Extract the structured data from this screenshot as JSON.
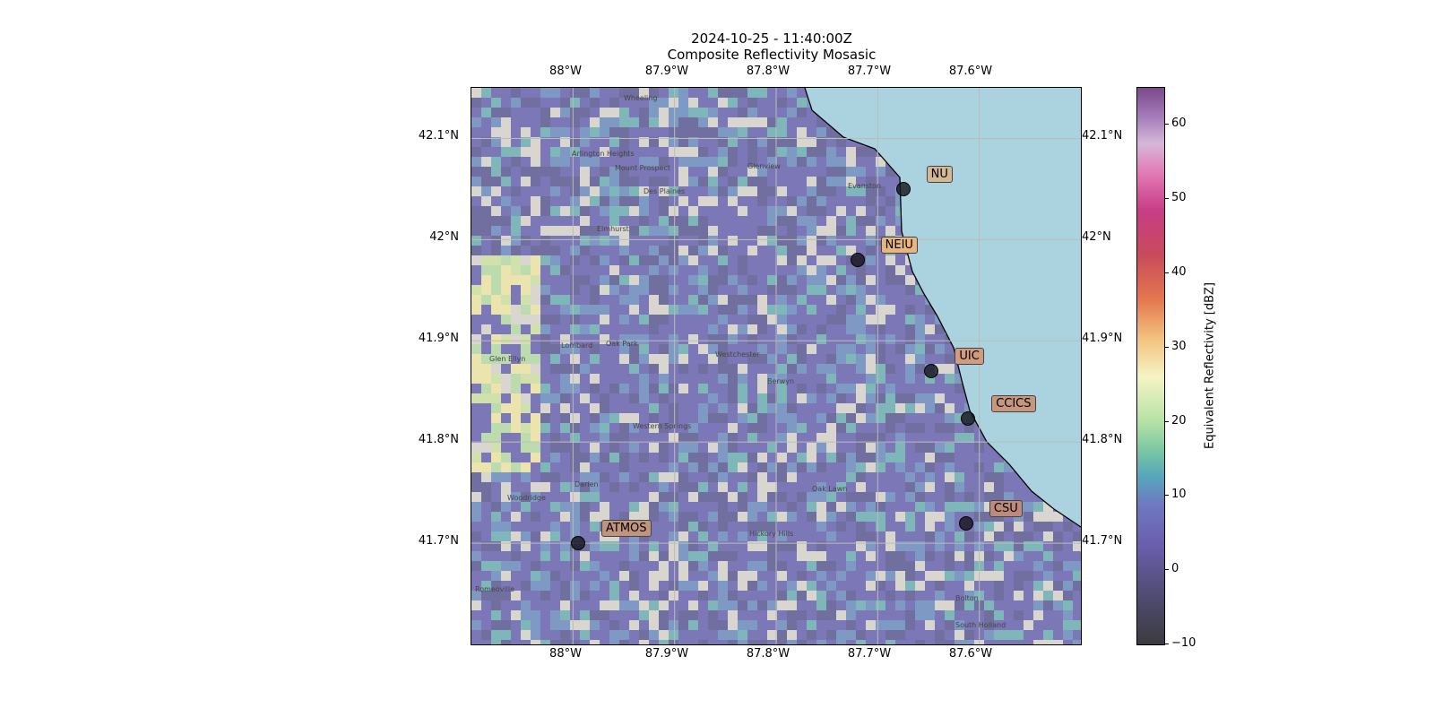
{
  "title": {
    "line1": "2024-10-25 - 11:40:00Z",
    "line2": "Composite Reflectivity Mosasic"
  },
  "axes": {
    "lon_ticks": [
      "88°W",
      "87.9°W",
      "87.8°W",
      "87.7°W",
      "87.6°W"
    ],
    "lat_ticks": [
      "42.1°N",
      "42°N",
      "41.9°N",
      "41.8°N",
      "41.7°N"
    ]
  },
  "basemap_places": [
    "Wheeling",
    "Arlington Heights",
    "Mount Prospect",
    "Glenview",
    "Des Plaines",
    "Evanston",
    "Elmhurst",
    "Lombard",
    "Glen Ellyn",
    "Oak Park",
    "Berwyn",
    "Westchester",
    "Western Springs",
    "Oak Lawn",
    "Woodridge",
    "Darien",
    "Romeoville",
    "Bolton",
    "South Holland",
    "Hickory Hills"
  ],
  "sites": [
    {
      "name": "NU",
      "lat": 42.05,
      "lon": -87.675,
      "color": "#d3b896"
    },
    {
      "name": "NEIU",
      "lat": 41.98,
      "lon": -87.72,
      "color": "#e8b57f"
    },
    {
      "name": "UIC",
      "lat": 41.87,
      "lon": -87.647,
      "color": "#d09b7f"
    },
    {
      "name": "CCICS",
      "lat": 41.823,
      "lon": -87.611,
      "color": "#c6967f"
    },
    {
      "name": "CSU",
      "lat": 41.72,
      "lon": -87.613,
      "color": "#be8a7c"
    },
    {
      "name": "ATMOS",
      "lat": 41.7,
      "lon": -87.995,
      "color": "#c0947e"
    }
  ],
  "colorbar": {
    "label": "Equivalent Reflectivity [dBZ]",
    "min": -10,
    "max": 65,
    "ticks": [
      "60",
      "50",
      "40",
      "30",
      "20",
      "10",
      "0",
      "−10"
    ],
    "tick_values": [
      60,
      50,
      40,
      30,
      20,
      10,
      0,
      -10
    ]
  },
  "extent": {
    "lon_min": -88.1,
    "lon_max": -87.5,
    "lat_min": 41.6,
    "lat_max": 42.15
  },
  "colors": {
    "lake": "#aad3df",
    "land": "#d8d6cf",
    "coastline": "#000000"
  }
}
